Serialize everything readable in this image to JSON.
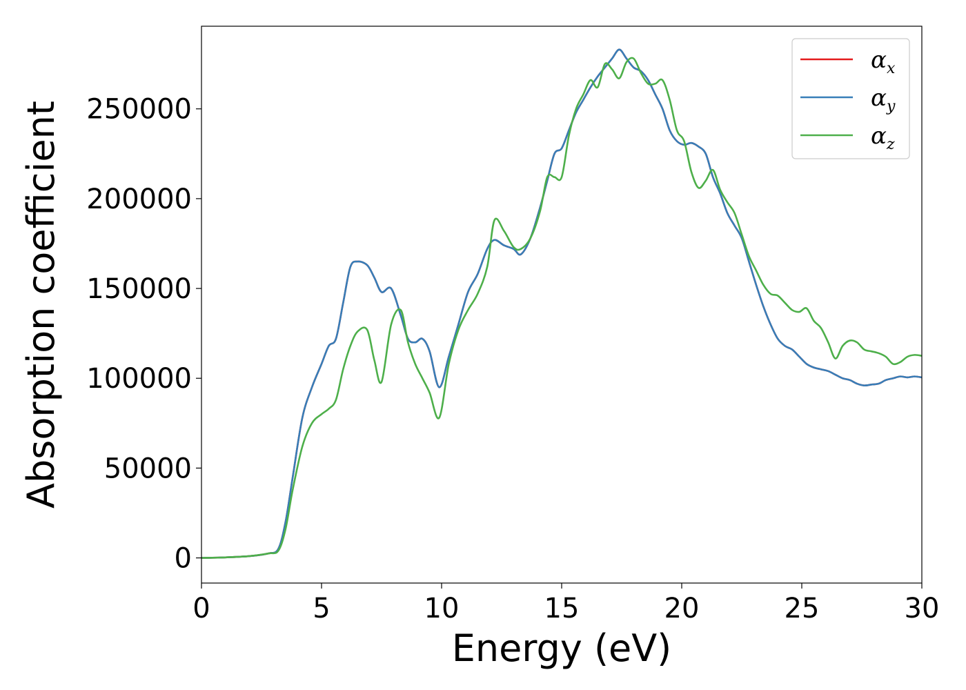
{
  "chart_data": {
    "type": "line",
    "xlabel": "Energy (eV)",
    "ylabel": "Absorption coefficient",
    "xlim": [
      0,
      30
    ],
    "ylim": [
      -14000,
      296000
    ],
    "xticks": [
      0,
      5,
      10,
      15,
      20,
      25,
      30
    ],
    "yticks": [
      0,
      50000,
      100000,
      150000,
      200000,
      250000
    ],
    "grid": false,
    "legend_position": "top-right",
    "series": [
      {
        "name": "αx",
        "symbol": "α",
        "subscript": "x",
        "color": "#e41a1c",
        "x": [
          0,
          1,
          2,
          2.8,
          3.2,
          3.5,
          3.8,
          4.2,
          4.6,
          5.0,
          5.3,
          5.6,
          5.9,
          6.2,
          6.5,
          6.9,
          7.2,
          7.5,
          7.9,
          8.3,
          8.6,
          8.9,
          9.2,
          9.5,
          9.9,
          10.3,
          10.7,
          11.1,
          11.5,
          11.9,
          12.2,
          12.6,
          13.0,
          13.3,
          13.7,
          14.1,
          14.4,
          14.7,
          15.0,
          15.3,
          15.6,
          15.9,
          16.2,
          16.5,
          16.8,
          17.1,
          17.4,
          17.7,
          18.0,
          18.3,
          18.6,
          18.9,
          19.2,
          19.5,
          19.8,
          20.1,
          20.4,
          20.7,
          21.0,
          21.3,
          21.6,
          21.9,
          22.2,
          22.5,
          22.8,
          23.1,
          23.4,
          23.7,
          24.0,
          24.3,
          24.6,
          24.9,
          25.2,
          25.5,
          25.8,
          26.1,
          26.4,
          26.7,
          27.0,
          27.3,
          27.6,
          27.9,
          28.2,
          28.5,
          28.8,
          29.1,
          29.4,
          29.7,
          30.0
        ],
        "y": [
          0,
          300,
          1000,
          2500,
          5000,
          20000,
          45000,
          78000,
          95000,
          108000,
          118000,
          122000,
          142000,
          162000,
          165000,
          163000,
          156000,
          148000,
          150000,
          135000,
          122000,
          120000,
          122000,
          115000,
          95000,
          112000,
          130000,
          148000,
          158000,
          172000,
          177000,
          174000,
          172000,
          169000,
          178000,
          195000,
          210000,
          225000,
          228000,
          238000,
          248000,
          255000,
          262000,
          268000,
          273000,
          278000,
          283000,
          278000,
          273000,
          271000,
          266000,
          258000,
          250000,
          238000,
          232000,
          230000,
          231000,
          229000,
          225000,
          212000,
          203000,
          192000,
          185000,
          178000,
          165000,
          152000,
          140000,
          130000,
          122000,
          118000,
          116000,
          112000,
          108000,
          106000,
          105000,
          104000,
          102000,
          100000,
          99000,
          97000,
          96000,
          96500,
          97000,
          99000,
          100000,
          101000,
          100500,
          101000,
          100500
        ]
      },
      {
        "name": "αy",
        "symbol": "α",
        "subscript": "y",
        "color": "#377eb8",
        "x": [
          0,
          1,
          2,
          2.8,
          3.2,
          3.5,
          3.8,
          4.2,
          4.6,
          5.0,
          5.3,
          5.6,
          5.9,
          6.2,
          6.5,
          6.9,
          7.2,
          7.5,
          7.9,
          8.3,
          8.6,
          8.9,
          9.2,
          9.5,
          9.9,
          10.3,
          10.7,
          11.1,
          11.5,
          11.9,
          12.2,
          12.6,
          13.0,
          13.3,
          13.7,
          14.1,
          14.4,
          14.7,
          15.0,
          15.3,
          15.6,
          15.9,
          16.2,
          16.5,
          16.8,
          17.1,
          17.4,
          17.7,
          18.0,
          18.3,
          18.6,
          18.9,
          19.2,
          19.5,
          19.8,
          20.1,
          20.4,
          20.7,
          21.0,
          21.3,
          21.6,
          21.9,
          22.2,
          22.5,
          22.8,
          23.1,
          23.4,
          23.7,
          24.0,
          24.3,
          24.6,
          24.9,
          25.2,
          25.5,
          25.8,
          26.1,
          26.4,
          26.7,
          27.0,
          27.3,
          27.6,
          27.9,
          28.2,
          28.5,
          28.8,
          29.1,
          29.4,
          29.7,
          30.0
        ],
        "y": [
          0,
          300,
          1000,
          2500,
          5000,
          20000,
          45000,
          78000,
          95000,
          108000,
          118000,
          122000,
          142000,
          162000,
          165000,
          163000,
          156000,
          148000,
          150000,
          135000,
          122000,
          120000,
          122000,
          115000,
          95000,
          112000,
          130000,
          148000,
          158000,
          172000,
          177000,
          174000,
          172000,
          169000,
          178000,
          195000,
          210000,
          225000,
          228000,
          238000,
          248000,
          255000,
          262000,
          268000,
          273000,
          278000,
          283000,
          278000,
          273000,
          271000,
          266000,
          258000,
          250000,
          238000,
          232000,
          230000,
          231000,
          229000,
          225000,
          212000,
          203000,
          192000,
          185000,
          178000,
          165000,
          152000,
          140000,
          130000,
          122000,
          118000,
          116000,
          112000,
          108000,
          106000,
          105000,
          104000,
          102000,
          100000,
          99000,
          97000,
          96000,
          96500,
          97000,
          99000,
          100000,
          101000,
          100500,
          101000,
          100500
        ]
      },
      {
        "name": "αz",
        "symbol": "α",
        "subscript": "z",
        "color": "#4daf4a",
        "x": [
          0,
          1,
          2,
          2.8,
          3.2,
          3.5,
          3.8,
          4.2,
          4.6,
          5.0,
          5.3,
          5.6,
          5.9,
          6.2,
          6.5,
          6.9,
          7.2,
          7.5,
          7.9,
          8.3,
          8.6,
          8.9,
          9.2,
          9.5,
          9.9,
          10.3,
          10.7,
          11.1,
          11.5,
          11.9,
          12.2,
          12.6,
          13.0,
          13.3,
          13.7,
          14.1,
          14.4,
          14.7,
          15.0,
          15.3,
          15.6,
          15.9,
          16.2,
          16.5,
          16.8,
          17.1,
          17.4,
          17.7,
          18.0,
          18.3,
          18.6,
          18.9,
          19.2,
          19.5,
          19.8,
          20.1,
          20.4,
          20.7,
          21.0,
          21.3,
          21.6,
          21.9,
          22.2,
          22.5,
          22.8,
          23.1,
          23.4,
          23.7,
          24.0,
          24.3,
          24.6,
          24.9,
          25.2,
          25.5,
          25.8,
          26.1,
          26.4,
          26.7,
          27.0,
          27.3,
          27.6,
          27.9,
          28.2,
          28.5,
          28.8,
          29.1,
          29.4,
          29.7,
          30.0
        ],
        "y": [
          0,
          300,
          1000,
          2500,
          4000,
          16000,
          38000,
          62000,
          75000,
          80000,
          83000,
          88000,
          105000,
          118000,
          126000,
          127000,
          110000,
          98000,
          130000,
          138000,
          120000,
          108000,
          100000,
          92000,
          78000,
          108000,
          127000,
          138000,
          147000,
          162000,
          188000,
          182000,
          173000,
          172000,
          178000,
          193000,
          212000,
          212000,
          212000,
          235000,
          250000,
          258000,
          266000,
          262000,
          275000,
          272000,
          267000,
          276000,
          278000,
          270000,
          264000,
          264000,
          266000,
          255000,
          238000,
          232000,
          215000,
          206000,
          210000,
          216000,
          205000,
          198000,
          192000,
          180000,
          168000,
          160000,
          152000,
          147000,
          146000,
          142000,
          138000,
          137000,
          139000,
          132000,
          128000,
          120000,
          111000,
          118000,
          121000,
          120000,
          116000,
          115000,
          114000,
          112000,
          108000,
          109000,
          112000,
          113000,
          112500
        ]
      }
    ]
  }
}
